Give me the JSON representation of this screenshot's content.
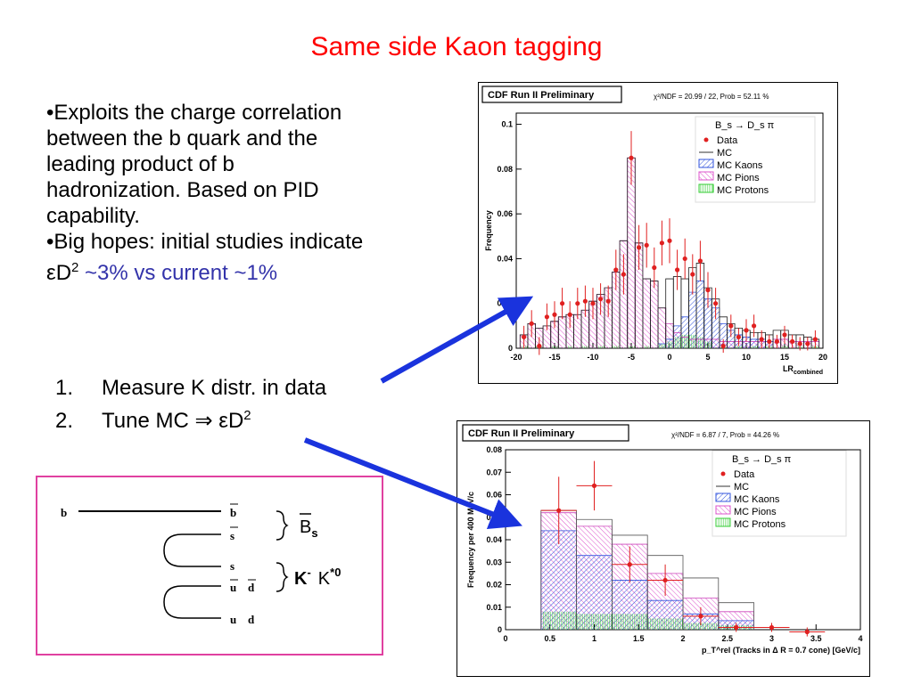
{
  "slide": {
    "title": "Same side Kaon tagging",
    "bullets": [
      "•Exploits the charge correlation",
      "between the b quark and the",
      "leading product of b",
      "hadronization. Based on PID",
      "capability.",
      "•Big hopes: initial studies indicate"
    ],
    "bullet_last_prefix": "εD",
    "bullet_last_sup": "2",
    "bullet_last_suffix": " ~3% vs current ~1%",
    "steps": [
      {
        "num": "1.",
        "text": "Measure K distr. in data"
      },
      {
        "num": "2.",
        "text": "Tune MC ⇒ εD",
        "sup": "2"
      }
    ],
    "diagram": {
      "quark_b_left": "b",
      "quarks_right": [
        "b",
        "s",
        "s",
        "u",
        "d",
        "u",
        "d"
      ],
      "meson1": "B",
      "meson1_sub": "s",
      "meson2": "K",
      "meson2_sup": "-",
      "meson3": "K",
      "meson3_sup": "*0"
    },
    "colors": {
      "title": "#ff0000",
      "blue_text": "#3333aa",
      "arrow": "#1a33dd",
      "diagram_border": "#e040a0"
    }
  },
  "chart_data": [
    {
      "type": "bar",
      "banner": "CDF Run II Preliminary",
      "stats": "χ²/NDF = 20.99 / 22, Prob = 52.11 %",
      "ylabel": "Frequency",
      "xlabel": "LR",
      "xlabel_sub": "combined",
      "xlim": [
        -20,
        20
      ],
      "ylim": [
        0,
        0.105
      ],
      "xticks": [
        "-20",
        "-15",
        "-10",
        "-5",
        "0",
        "5",
        "10",
        "15",
        "20"
      ],
      "xtick_values": [
        -20,
        -15,
        -10,
        -5,
        0,
        5,
        10,
        15,
        20
      ],
      "yticks": [
        "0",
        "0.02",
        "0.04",
        "0.06",
        "0.08",
        "0.1"
      ],
      "ytick_values": [
        0,
        0.02,
        0.04,
        0.06,
        0.08,
        0.1
      ],
      "legend": {
        "title": "B_s → D_s π",
        "entries": [
          "Data",
          "MC",
          "MC Kaons",
          "MC Pions",
          "MC Protons"
        ],
        "position": "top-right"
      },
      "bin_width": 1,
      "series": [
        {
          "name": "MC Pions",
          "x": [
            -19,
            -18,
            -17,
            -16,
            -15,
            -14,
            -13,
            -12,
            -11,
            -10,
            -9,
            -8,
            -7,
            -6,
            -5,
            -4,
            -3,
            -2,
            -1,
            0,
            1,
            2,
            3,
            4,
            5,
            6,
            7,
            8,
            9,
            10,
            11,
            12,
            13,
            14,
            15,
            16,
            17,
            18,
            19
          ],
          "values": [
            0.006,
            0.011,
            0.009,
            0.01,
            0.012,
            0.014,
            0.015,
            0.015,
            0.017,
            0.021,
            0.024,
            0.027,
            0.034,
            0.048,
            0.085,
            0.047,
            0.031,
            0.03,
            0.018,
            0.011,
            0.007,
            0.005,
            0.004,
            0.004,
            0.004,
            0.004,
            0.003,
            0.003,
            0.003,
            0.003,
            0.003,
            0.003,
            0.003,
            0.004,
            0.004,
            0.003,
            0.003,
            0.003,
            0.003
          ]
        },
        {
          "name": "MC Kaons",
          "x": [
            -1,
            0,
            1,
            2,
            3,
            4,
            5,
            6,
            7,
            8,
            9,
            10,
            11,
            12,
            13
          ],
          "values": [
            0.002,
            0.004,
            0.01,
            0.014,
            0.025,
            0.03,
            0.022,
            0.018,
            0.011,
            0.008,
            0.006,
            0.005,
            0.004,
            0.004,
            0.003
          ]
        },
        {
          "name": "MC Protons",
          "x": [
            -19,
            -17,
            -15,
            -13,
            -11,
            -9,
            -7,
            -5,
            -3,
            -1,
            0,
            1,
            2,
            3,
            4,
            5,
            7,
            9,
            11,
            13,
            15,
            17,
            19
          ],
          "values": [
            0.001,
            0.001,
            0.001,
            0.001,
            0.001,
            0.001,
            0.001,
            0.001,
            0.001,
            0.002,
            0.003,
            0.005,
            0.006,
            0.006,
            0.005,
            0.003,
            0.001,
            0.001,
            0.001,
            0.001,
            0.001,
            0.001,
            0.001
          ]
        },
        {
          "name": "MC",
          "x": [
            -19,
            -18,
            -17,
            -16,
            -15,
            -14,
            -13,
            -12,
            -11,
            -10,
            -9,
            -8,
            -7,
            -6,
            -5,
            -4,
            -3,
            -2,
            -1,
            0,
            1,
            2,
            3,
            4,
            5,
            6,
            7,
            8,
            9,
            10,
            11,
            12,
            13,
            14,
            15,
            16,
            17,
            18,
            19
          ],
          "values": [
            0.006,
            0.011,
            0.009,
            0.01,
            0.012,
            0.014,
            0.015,
            0.015,
            0.017,
            0.021,
            0.024,
            0.027,
            0.034,
            0.048,
            0.085,
            0.047,
            0.031,
            0.03,
            0.018,
            0.031,
            0.032,
            0.031,
            0.036,
            0.038,
            0.027,
            0.022,
            0.014,
            0.011,
            0.009,
            0.008,
            0.007,
            0.007,
            0.006,
            0.008,
            0.008,
            0.006,
            0.006,
            0.005,
            0.004
          ]
        },
        {
          "name": "Data",
          "x": [
            -19,
            -18,
            -17,
            -16,
            -15,
            -14,
            -13,
            -12,
            -11,
            -10,
            -9,
            -8,
            -7,
            -6,
            -5,
            -4,
            -3,
            -2,
            -1,
            0,
            1,
            2,
            3,
            4,
            5,
            6,
            7,
            8,
            9,
            10,
            11,
            12,
            13,
            14,
            15,
            16,
            17,
            18,
            19
          ],
          "values": [
            0.005,
            0.011,
            0.001,
            0.014,
            0.015,
            0.02,
            0.015,
            0.02,
            0.021,
            0.02,
            0.022,
            0.021,
            0.035,
            0.033,
            0.085,
            0.045,
            0.046,
            0.036,
            0.047,
            0.048,
            0.035,
            0.04,
            0.033,
            0.039,
            0.026,
            0.02,
            0.001,
            0.01,
            0.005,
            0.008,
            0.01,
            0.004,
            0.003,
            0.003,
            0.006,
            0.003,
            0.002,
            0.002,
            0.004
          ],
          "errors": [
            0.005,
            0.006,
            0.004,
            0.006,
            0.006,
            0.007,
            0.006,
            0.007,
            0.007,
            0.007,
            0.007,
            0.007,
            0.009,
            0.009,
            0.012,
            0.01,
            0.01,
            0.009,
            0.01,
            0.01,
            0.009,
            0.009,
            0.009,
            0.009,
            0.008,
            0.007,
            0.003,
            0.005,
            0.004,
            0.005,
            0.005,
            0.004,
            0.003,
            0.003,
            0.004,
            0.003,
            0.003,
            0.003,
            0.004
          ]
        }
      ]
    },
    {
      "type": "bar",
      "banner": "CDF Run II Preliminary",
      "stats": "χ²/NDF = 6.87 / 7, Prob = 44.26 %",
      "ylabel": "Frequency per 400 MeV/c",
      "xlabel": "p_T^rel (Tracks in Δ R = 0.7 cone) [GeV/c]",
      "xlim": [
        0,
        4
      ],
      "ylim": [
        0,
        0.08
      ],
      "xticks": [
        "0",
        "0.5",
        "1",
        "1.5",
        "2",
        "2.5",
        "3",
        "3.5",
        "4"
      ],
      "xtick_values": [
        0,
        0.5,
        1,
        1.5,
        2,
        2.5,
        3,
        3.5,
        4
      ],
      "yticks": [
        "0",
        "0.01",
        "0.02",
        "0.03",
        "0.04",
        "0.05",
        "0.06",
        "0.07",
        "0.08"
      ],
      "ytick_values": [
        0,
        0.01,
        0.02,
        0.03,
        0.04,
        0.05,
        0.06,
        0.07,
        0.08
      ],
      "legend": {
        "title": "B_s → D_s π",
        "entries": [
          "Data",
          "MC",
          "MC Kaons",
          "MC Pions",
          "MC Protons"
        ],
        "position": "top-right"
      },
      "bin_edges": [
        0.4,
        0.8,
        1.2,
        1.6,
        2.0,
        2.4,
        2.8
      ],
      "series": [
        {
          "name": "MC Kaons",
          "values": [
            0.044,
            0.033,
            0.022,
            0.013,
            0.007,
            0.004
          ]
        },
        {
          "name": "MC Pions",
          "values": [
            0.052,
            0.046,
            0.038,
            0.025,
            0.014,
            0.008
          ]
        },
        {
          "name": "MC Protons",
          "values": [
            0.008,
            0.007,
            0.007,
            0.005,
            0.003,
            0.002
          ]
        },
        {
          "name": "MC",
          "values": [
            0.053,
            0.049,
            0.042,
            0.033,
            0.023,
            0.012
          ]
        },
        {
          "name": "Data",
          "x": [
            0.6,
            1.0,
            1.4,
            1.8,
            2.2,
            2.6,
            3.0,
            3.4
          ],
          "values": [
            0.053,
            0.064,
            0.029,
            0.022,
            0.006,
            0.001,
            0.001,
            -0.001
          ],
          "errors": [
            0.015,
            0.011,
            0.008,
            0.007,
            0.004,
            0.002,
            0.002,
            0.002
          ]
        }
      ]
    }
  ]
}
